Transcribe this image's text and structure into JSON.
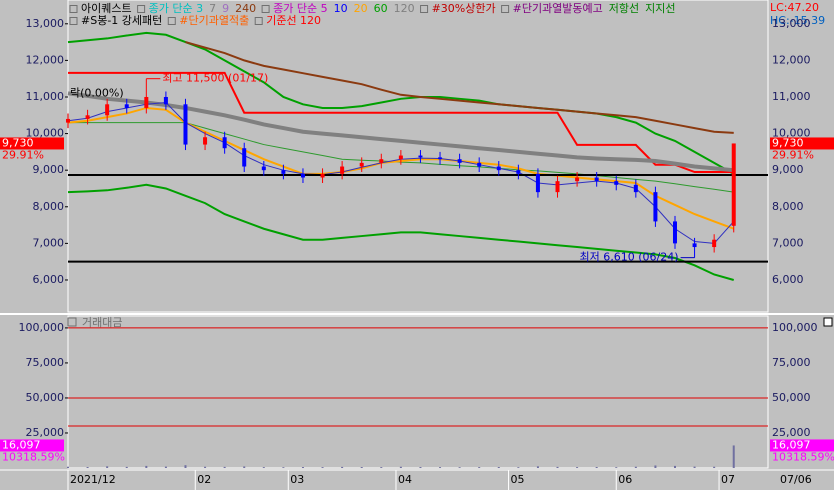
{
  "chart_data": {
    "type": "stock",
    "x": [
      0,
      4,
      8,
      12,
      16,
      20,
      24,
      28,
      32,
      36,
      40,
      44,
      48,
      52,
      56,
      60,
      64,
      68,
      72,
      76,
      80,
      84,
      88,
      92,
      96,
      100,
      104,
      108,
      112,
      116,
      120,
      124,
      128,
      132,
      136
    ],
    "xlim": [
      0,
      143
    ],
    "xticks": [
      {
        "value": 0,
        "label": "2021/12"
      },
      {
        "value": 26,
        "label": "02"
      },
      {
        "value": 45,
        "label": "03"
      },
      {
        "value": 67,
        "label": "04"
      },
      {
        "value": 90,
        "label": "05"
      },
      {
        "value": 112,
        "label": "06"
      },
      {
        "value": 133,
        "label": "07"
      }
    ],
    "date_label": "07/06",
    "ylim": [
      5125,
      13650
    ],
    "yticks": [
      {
        "value": 6000,
        "label": "6,000"
      },
      {
        "value": 7000,
        "label": "7,000"
      },
      {
        "value": 8000,
        "label": "8,000"
      },
      {
        "value": 9000,
        "label": "9,000"
      },
      {
        "value": 10000,
        "label": "10,000"
      },
      {
        "value": 11000,
        "label": "11,000"
      },
      {
        "value": 12000,
        "label": "12,000"
      },
      {
        "value": 13000,
        "label": "13,000"
      }
    ],
    "up_color": "#ff0000",
    "down_color": "#0000ff",
    "candles": {
      "open": [
        10300,
        10400,
        10500,
        10800,
        10700,
        11000,
        10800,
        9700,
        9900,
        9600,
        9100,
        9000,
        8900,
        8800,
        8900,
        9100,
        9200,
        9300,
        9400,
        9350,
        9300,
        9200,
        9100,
        9000,
        8900,
        8400,
        8700,
        8800,
        8700,
        8600,
        8400,
        7600,
        7000,
        6900,
        7480
      ],
      "high": [
        10550,
        10650,
        10950,
        10950,
        11500,
        11150,
        10950,
        10050,
        10050,
        9750,
        9250,
        9150,
        9050,
        9050,
        9250,
        9350,
        9450,
        9550,
        9550,
        9500,
        9450,
        9350,
        9250,
        9150,
        9050,
        8850,
        8950,
        8950,
        8850,
        8750,
        8550,
        7750,
        7150,
        7250,
        9730
      ],
      "low": [
        10150,
        10250,
        10350,
        10550,
        10550,
        10650,
        9550,
        9550,
        9450,
        8950,
        8850,
        8750,
        8650,
        8650,
        8750,
        8950,
        9050,
        9150,
        9200,
        9150,
        9050,
        8950,
        8850,
        8750,
        8250,
        8250,
        8550,
        8550,
        8450,
        8250,
        7450,
        6850,
        6610,
        6750,
        7300
      ],
      "close": [
        10400,
        10500,
        10800,
        10700,
        11000,
        10800,
        9700,
        9900,
        9600,
        9100,
        9000,
        8900,
        8800,
        8900,
        9100,
        9200,
        9300,
        9400,
        9350,
        9300,
        9200,
        9100,
        9000,
        8900,
        8400,
        8700,
        8800,
        8700,
        8600,
        8400,
        7600,
        7000,
        6900,
        7100,
        9730
      ]
    },
    "series": [
      {
        "color": "#00a000",
        "width": 2,
        "values": [
          12500,
          12550,
          12600,
          12680,
          12750,
          12700,
          12500,
          12300,
          12000,
          11700,
          11400,
          11000,
          10800,
          10700,
          10700,
          10750,
          10850,
          10950,
          11000,
          11000,
          10950,
          10900,
          10800,
          10750,
          10700,
          10650,
          10600,
          10550,
          10450,
          10300,
          10000,
          9800,
          9500,
          9200,
          8900
        ]
      },
      {
        "color": "#00a000",
        "width": 2,
        "values": [
          8400,
          8420,
          8450,
          8520,
          8600,
          8500,
          8300,
          8100,
          7800,
          7600,
          7400,
          7250,
          7100,
          7100,
          7150,
          7200,
          7250,
          7300,
          7300,
          7250,
          7200,
          7150,
          7100,
          7050,
          7000,
          6950,
          6900,
          6850,
          6800,
          6750,
          6700,
          6600,
          6400,
          6150,
          6000
        ]
      },
      {
        "color": "#8b3a10",
        "width": 2,
        "values": [
          null,
          null,
          null,
          null,
          null,
          null,
          12500,
          12350,
          12200,
          12000,
          11850,
          11750,
          11650,
          11550,
          11450,
          11350,
          11200,
          11060,
          11000,
          10950,
          10900,
          10850,
          10800,
          10750,
          10700,
          10650,
          10600,
          10550,
          10500,
          10450,
          10350,
          10250,
          10150,
          10050,
          10020
        ]
      },
      {
        "color": "#ff0000",
        "width": 2,
        "values": [
          11660,
          11660,
          11660,
          11660,
          11660,
          11660,
          11660,
          11660,
          11660,
          10570,
          10570,
          10570,
          10570,
          10570,
          10570,
          10570,
          10570,
          10570,
          10570,
          10570,
          10570,
          10570,
          10570,
          10570,
          10570,
          10570,
          9690,
          9690,
          9690,
          9690,
          9150,
          9150,
          8950,
          8950,
          8950
        ]
      },
      {
        "color": "#808080",
        "width": 4,
        "values": [
          11100,
          11030,
          10950,
          10900,
          10850,
          10780,
          10700,
          10600,
          10500,
          10380,
          10250,
          10150,
          10050,
          10000,
          9950,
          9900,
          9850,
          9800,
          9750,
          9700,
          9650,
          9600,
          9550,
          9500,
          9450,
          9400,
          9350,
          9320,
          9300,
          9280,
          9250,
          9180,
          9100,
          9050,
          9000
        ]
      },
      {
        "color": "#2e9a2e",
        "width": 1,
        "values": [
          10300,
          10300,
          10300,
          10300,
          10300,
          10300,
          10300,
          10150,
          10000,
          9850,
          9700,
          9600,
          9500,
          9400,
          9300,
          9270,
          9250,
          9220,
          9200,
          9160,
          9120,
          9090,
          9050,
          9010,
          8980,
          8940,
          8900,
          8850,
          8800,
          8750,
          8700,
          8630,
          8550,
          8480,
          8400
        ]
      },
      {
        "color": "#ffa500",
        "width": 2,
        "values": [
          10300,
          10350,
          10450,
          10550,
          10700,
          10650,
          10300,
          10050,
          9800,
          9550,
          9300,
          9100,
          8900,
          8900,
          8950,
          9050,
          9200,
          9250,
          9300,
          9300,
          9250,
          9200,
          9150,
          9050,
          8900,
          8850,
          8800,
          8750,
          8700,
          8650,
          8300,
          8050,
          7800,
          7600,
          7400
        ]
      },
      {
        "color": "#3030c0",
        "width": 1,
        "values": [
          10350,
          10420,
          10600,
          10700,
          10800,
          10850,
          10300,
          10000,
          9750,
          9400,
          9150,
          9000,
          8900,
          8880,
          8950,
          9080,
          9200,
          9300,
          9330,
          9320,
          9250,
          9150,
          9050,
          8950,
          8650,
          8600,
          8650,
          8700,
          8650,
          8500,
          8000,
          7400,
          7050,
          7000,
          7600
        ]
      }
    ],
    "hlines": [
      8870,
      6500
    ],
    "hline_color": "#000000",
    "annotations": [
      {
        "text": "최고 11,500 (01/17)",
        "color": "#ff0000",
        "x": 16,
        "y": 11500
      },
      {
        "text": "최저 6,610 (06/24)",
        "color": "#0000c0",
        "x": 128,
        "y": 6610
      },
      {
        "text": "락(0.00%)",
        "color": "#000000",
        "x": 0,
        "y": 11100
      }
    ],
    "price_tag": {
      "value": 9730,
      "label": "9,730",
      "change": "29.91%",
      "color": "#ff0000"
    },
    "corner": [
      "LC:47.20",
      "HC:-15.39"
    ],
    "legend_rows": [
      [
        {
          "text": "아이퀘스트",
          "color": "#000000"
        },
        {
          "text": "종가 단순 3",
          "color": "#00c0c0"
        },
        {
          "text": "7",
          "color": "#808080"
        },
        {
          "text": "9",
          "color": "#a070c0"
        },
        {
          "text": "240",
          "color": "#8b3a10"
        },
        {
          "text": "종가 단순 5",
          "color": "#c000c0"
        },
        {
          "text": "10",
          "color": "#0000ff"
        },
        {
          "text": "20",
          "color": "#ffa500"
        },
        {
          "text": "60",
          "color": "#00a000"
        },
        {
          "text": "120",
          "color": "#808080"
        },
        {
          "text": "#30%상한가",
          "color": "#c00000"
        },
        {
          "text": "#단기과열발동예고",
          "color": "#800080"
        },
        {
          "text": "저항선",
          "color": "#008000"
        },
        {
          "text": "지지선",
          "color": "#008000"
        }
      ],
      [
        {
          "text": "#S봉-1 강세패턴",
          "color": "#000000"
        },
        {
          "text": "#단기과열적출",
          "color": "#ff6000"
        },
        {
          "text": "기준선 120",
          "color": "#ff0000"
        }
      ]
    ],
    "volume": {
      "title": "거래대금",
      "color": "#7070a0",
      "values": [
        900,
        700,
        1200,
        800,
        1500,
        1000,
        2000,
        900,
        800,
        1100,
        600,
        500,
        700,
        600,
        800,
        700,
        600,
        900,
        700,
        600,
        500,
        600,
        700,
        500,
        1200,
        800,
        600,
        700,
        500,
        900,
        1800,
        1500,
        1000,
        900,
        16097
      ],
      "ylim": [
        0,
        108500
      ],
      "yticks": [
        {
          "value": 25000,
          "label": "25,000"
        },
        {
          "value": 50000,
          "label": "50,000"
        },
        {
          "value": 75000,
          "label": "75,000"
        },
        {
          "value": 100000,
          "label": "100,000"
        }
      ],
      "hlines": [
        100000,
        50000,
        30000
      ],
      "hline_color": "#e00000",
      "tag": {
        "value": 16097,
        "label": "16,097",
        "change": "10318.59%",
        "color": "#ff00ff"
      }
    }
  }
}
